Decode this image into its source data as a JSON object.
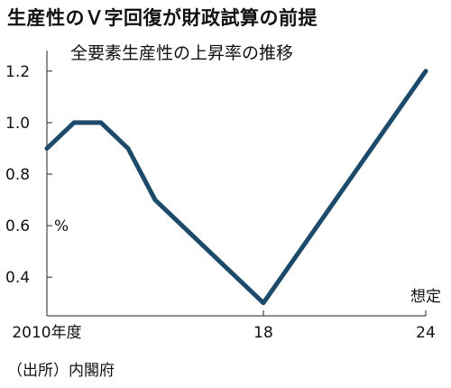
{
  "chart_data": {
    "type": "line",
    "title": "生産性のＶ字回復が財政試算の前提",
    "subtitle": "全要素生産性の上昇率の推移",
    "unit_label": "%",
    "source": "（出所）内閣府",
    "x_tick_labels": [
      {
        "x": 2010,
        "label": "2010年度"
      },
      {
        "x": 2018,
        "label": "18"
      },
      {
        "x": 2024,
        "label": "24"
      }
    ],
    "y_ticks": [
      0.4,
      0.6,
      0.8,
      1.0,
      1.2
    ],
    "y_tick_labels": [
      "0.4",
      "0.6",
      "0.8",
      "1.0",
      "1.2"
    ],
    "xlim": [
      2010,
      2024
    ],
    "ylim": [
      0.25,
      1.28
    ],
    "annotation": {
      "text": "想定",
      "x": 2024
    },
    "grid": false,
    "line_color": "#1b4a6b",
    "series": [
      {
        "x": [
          2010,
          2011,
          2012,
          2013,
          2014,
          2018,
          2024
        ],
        "values": [
          0.9,
          1.0,
          1.0,
          0.9,
          0.7,
          0.3,
          1.2
        ]
      }
    ]
  }
}
